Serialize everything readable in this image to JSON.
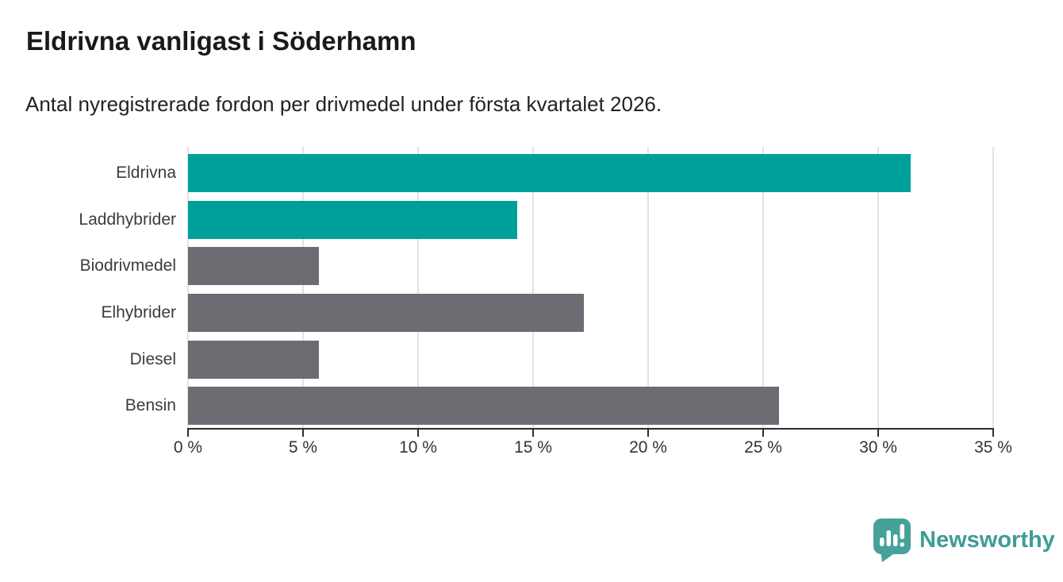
{
  "chart_data": {
    "type": "bar",
    "orientation": "horizontal",
    "title": "Eldrivna vanligast i Söderhamn",
    "subtitle": "Antal nyregistrerade fordon per drivmedel under första kvartalet 2026.",
    "categories": [
      "Eldrivna",
      "Laddhybrider",
      "Biodrivmedel",
      "Elhybrider",
      "Diesel",
      "Bensin"
    ],
    "values": [
      31.4,
      14.3,
      5.7,
      17.2,
      5.7,
      25.7
    ],
    "unit": "%",
    "bar_colors": [
      "#00A09A",
      "#00A09A",
      "#6E6C72",
      "#6E6C72",
      "#6E6C72",
      "#6E6C72"
    ],
    "highlight_color": "#00A09A",
    "base_color": "#6E6C72",
    "xlim": [
      0,
      35
    ],
    "x_ticks": [
      0,
      5,
      10,
      15,
      20,
      25,
      30,
      35
    ],
    "x_tick_labels": [
      "0 %",
      "5 %",
      "10 %",
      "15 %",
      "20 %",
      "25 %",
      "30 %",
      "35 %"
    ],
    "grid": "vertical",
    "legend": "none",
    "gridline_color": "#E2E2E2",
    "axis_color": "#2D2D2D"
  },
  "footer": {
    "brand": "Newsworthy",
    "brand_color": "#3E9C96",
    "logo_icon_color": "#46A19A"
  }
}
